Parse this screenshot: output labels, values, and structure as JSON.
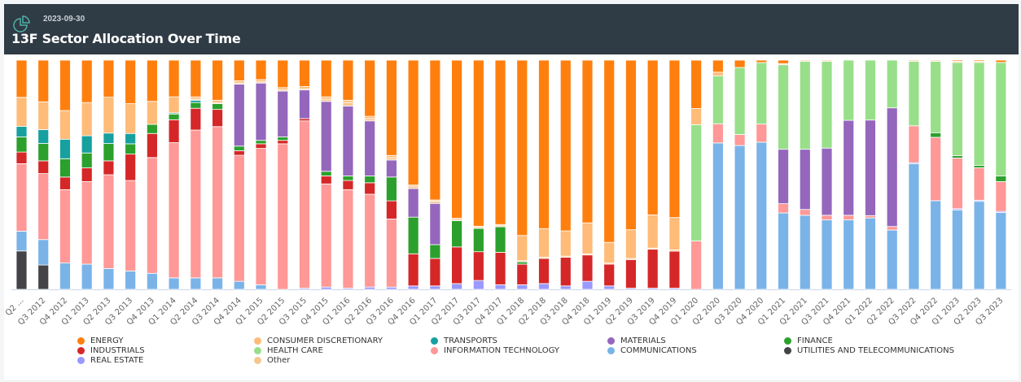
{
  "header": {
    "icon": "pie-chart-icon",
    "date": "2023-09-30",
    "title": "13F Sector Allocation Over Time"
  },
  "chart_data": {
    "type": "bar",
    "stacked": true,
    "normalized": true,
    "title": "13F Sector Allocation Over Time",
    "xlabel": "",
    "ylabel": "",
    "ylim": [
      0,
      100
    ],
    "grid": false,
    "legend_position": "bottom",
    "categories": [
      "Q2 ...",
      "Q3 2012",
      "Q4 2012",
      "Q1 2013",
      "Q2 2013",
      "Q3 2013",
      "Q4 2013",
      "Q1 2014",
      "Q2 2014",
      "Q3 2014",
      "Q4 2014",
      "Q1 2015",
      "Q2 2015",
      "Q3 2015",
      "Q4 2015",
      "Q1 2016",
      "Q2 2016",
      "Q3 2016",
      "Q4 2016",
      "Q1 2017",
      "Q2 2017",
      "Q3 2017",
      "Q4 2017",
      "Q1 2018",
      "Q2 2018",
      "Q3 2018",
      "Q4 2018",
      "Q1 2019",
      "Q2 2019",
      "Q3 2019",
      "Q4 2019",
      "Q1 2020",
      "Q2 2020",
      "Q3 2020",
      "Q4 2020",
      "Q1 2021",
      "Q2 2021",
      "Q3 2021",
      "Q4 2021",
      "Q1 2022",
      "Q2 2022",
      "Q3 2022",
      "Q4 2022",
      "Q1 2023",
      "Q2 2023",
      "Q3 2023"
    ],
    "series": [
      {
        "key": "util",
        "name": "UTILITIES AND TELECOMMUNICATIONS",
        "color": "#444448",
        "values": [
          16.5,
          10.5,
          0,
          0,
          0,
          0,
          0,
          0,
          0,
          0,
          0,
          0,
          0,
          0,
          0,
          0,
          0,
          0,
          0,
          0,
          0,
          0,
          0,
          0,
          0,
          0,
          0,
          0,
          0,
          0,
          0,
          0,
          0,
          0,
          0,
          0,
          0,
          0,
          0,
          0,
          0,
          0,
          0,
          0,
          0,
          0
        ]
      },
      {
        "key": "comm",
        "name": "COMMUNICATIONS",
        "color": "#7ab3e8",
        "values": [
          8.5,
          11,
          11.5,
          11,
          9,
          8,
          7,
          5,
          5,
          5,
          3.5,
          2,
          0,
          0,
          0,
          0,
          0,
          0,
          0,
          0,
          0,
          0,
          0,
          0,
          0,
          0,
          0,
          0,
          0,
          0,
          0,
          0,
          61,
          59,
          61,
          33,
          32,
          30,
          30,
          31,
          25.5,
          54.5,
          38.5,
          34.5,
          38,
          33.5
        ]
      },
      {
        "key": "re",
        "name": "REAL ESTATE",
        "color": "#9999ff",
        "values": [
          0,
          0,
          0,
          0,
          0,
          0,
          0,
          0,
          0,
          0,
          0,
          0,
          0,
          0.5,
          1,
          0.5,
          1,
          1,
          1.5,
          1.5,
          2.5,
          4,
          2,
          2,
          2.5,
          1.5,
          3.5,
          1.5,
          0.5,
          0.5,
          0.5,
          0,
          0,
          0,
          0,
          0,
          0,
          0,
          0,
          0,
          0,
          0.5,
          0,
          0.5,
          0.5,
          0.5
        ]
      },
      {
        "key": "it",
        "name": "INFORMATION TECHNOLOGY",
        "color": "#ff9896",
        "values": [
          29,
          28.5,
          32,
          36,
          40.5,
          39.5,
          50.5,
          59,
          64.5,
          66,
          55,
          59.5,
          63.5,
          73,
          45,
          43,
          40.5,
          30,
          0,
          0,
          0,
          0,
          0,
          0,
          0,
          0,
          0,
          0,
          0,
          0,
          0,
          21,
          8,
          4.5,
          7.5,
          4,
          2.5,
          2,
          2,
          1,
          1.5,
          16,
          27.5,
          22,
          14,
          13
        ]
      },
      {
        "key": "ind",
        "name": "INDUSTRIALS",
        "color": "#d62728",
        "values": [
          5,
          5.5,
          5.5,
          6,
          6,
          11.5,
          10.5,
          10,
          9.5,
          7.5,
          2,
          2,
          1.5,
          1,
          3.5,
          4,
          5,
          8,
          14,
          12,
          16,
          13,
          14,
          9,
          11,
          12.5,
          11.5,
          9.5,
          12.5,
          17,
          16,
          0,
          0,
          0,
          0,
          0,
          0,
          0,
          0,
          0,
          0,
          0,
          0,
          0,
          0,
          0
        ]
      },
      {
        "key": "fin",
        "name": "FINANCE",
        "color": "#2ca02c",
        "values": [
          6.5,
          7.5,
          8,
          6.5,
          7.5,
          4.5,
          4,
          2.5,
          2.5,
          2.5,
          2,
          1.5,
          1.5,
          0,
          2,
          2,
          3,
          10.5,
          16,
          6,
          11.5,
          10.5,
          11,
          1,
          0,
          0,
          0,
          0,
          0,
          0,
          0,
          0,
          0,
          0,
          0,
          0,
          0,
          0,
          0,
          0,
          0,
          0,
          2,
          1,
          1,
          2.5
        ]
      },
      {
        "key": "trans",
        "name": "TRANSPORTS",
        "color": "#17a0a0",
        "values": [
          4.5,
          6,
          8.5,
          7.5,
          4.5,
          4.5,
          0,
          0.5,
          1,
          0,
          0,
          0,
          0,
          0,
          0,
          0,
          0,
          0,
          0,
          0,
          0,
          0,
          0,
          0,
          0,
          0,
          0,
          0,
          0,
          0,
          0,
          0,
          0,
          0,
          0,
          0,
          0,
          0,
          0,
          0,
          0,
          0,
          0,
          0,
          0,
          0
        ]
      },
      {
        "key": "mat",
        "name": "MATERIALS",
        "color": "#9467bd",
        "values": [
          0,
          0,
          0,
          0,
          0,
          0,
          0,
          0,
          0,
          0,
          27,
          25,
          20,
          12.5,
          30.5,
          30.5,
          24,
          7.5,
          12.5,
          18,
          0,
          0,
          0,
          0,
          0,
          0,
          0,
          0,
          0,
          0,
          0,
          0,
          0,
          0,
          0,
          23.5,
          26,
          29,
          41,
          41.5,
          51,
          0,
          0,
          0,
          0,
          0
        ]
      },
      {
        "key": "hc",
        "name": "HEALTH CARE",
        "color": "#98df8a",
        "values": [
          0,
          0,
          0,
          0,
          0,
          0,
          0,
          0,
          0,
          0,
          0,
          0,
          0,
          0,
          0,
          0,
          0,
          0,
          0,
          0,
          0,
          0,
          0,
          0,
          0,
          0,
          0,
          0,
          0,
          0,
          0,
          50.5,
          20,
          27.5,
          25.5,
          36.5,
          38,
          37.5,
          26,
          26,
          20.5,
          28,
          31,
          40.5,
          44.5,
          49.5
        ]
      },
      {
        "key": "other",
        "name": "Other",
        "color": "#f7c690",
        "values": [
          0,
          0,
          0,
          0,
          0,
          0,
          0,
          0,
          0.5,
          0.5,
          0.5,
          0.5,
          0.5,
          0.5,
          1,
          1.5,
          1,
          1,
          1,
          1,
          0.5,
          0.5,
          0.5,
          0.5,
          0.5,
          0.5,
          0.5,
          0.5,
          0.5,
          0.5,
          0.5,
          0,
          0,
          0,
          0,
          0.5,
          0.5,
          0.5,
          0,
          0,
          0,
          0.5,
          0.5,
          0.5,
          0.5,
          0
        ]
      },
      {
        "key": "cd",
        "name": "CONSUMER DISCRETIONARY",
        "color": "#ffbb78",
        "values": [
          12.5,
          12,
          12.5,
          14.5,
          15.5,
          13,
          10,
          7,
          1,
          1,
          1,
          1,
          1,
          1,
          1,
          1,
          1,
          1,
          0.5,
          0.5,
          0.5,
          0.5,
          0.5,
          11,
          12.5,
          11,
          13.5,
          9,
          12.5,
          14.5,
          14,
          7,
          1.5,
          0,
          0,
          0,
          0,
          0,
          0,
          0,
          0,
          0,
          0,
          0,
          0,
          0
        ]
      },
      {
        "key": "energy",
        "name": "ENERGY",
        "color": "#ff7f0e",
        "values": [
          16,
          18,
          22,
          18.5,
          16,
          19,
          18,
          16,
          16,
          17.5,
          9,
          8.5,
          12,
          11.5,
          16,
          17.5,
          24.5,
          42,
          54.5,
          61,
          69,
          75,
          71,
          76.5,
          73.5,
          74.5,
          71,
          79.5,
          74,
          67.5,
          68,
          21,
          5,
          3,
          1,
          1.5,
          0,
          0,
          0,
          0,
          0,
          0,
          0,
          0.5,
          0.5,
          1
        ]
      }
    ],
    "legend_order": [
      "energy",
      "cd",
      "trans",
      "mat",
      "fin",
      "ind",
      "hc",
      "it",
      "comm",
      "util",
      "re",
      "other"
    ]
  }
}
